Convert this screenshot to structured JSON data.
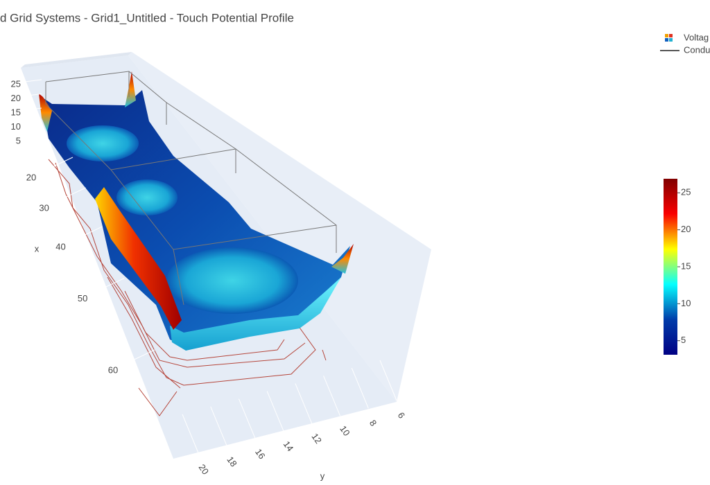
{
  "chart_data": {
    "type": "surface",
    "title": "d Grid Systems - Grid1_Untitled - Touch Potential Profile",
    "legend": [
      {
        "name": "Voltag",
        "kind": "surface"
      },
      {
        "name": "Condu",
        "kind": "line",
        "color": "#555555"
      }
    ],
    "xlabel": "x",
    "xticks": [
      20,
      30,
      40,
      50,
      60
    ],
    "ylabel": "y",
    "yticks": [
      6,
      8,
      10,
      12,
      14,
      16,
      18,
      20
    ],
    "zticks": [
      5,
      10,
      15,
      20,
      25
    ],
    "colorbar": {
      "range": [
        3.1,
        26.9
      ],
      "ticks": [
        5,
        10,
        15,
        20,
        25
      ],
      "colorscale": [
        "#000083",
        "#003caa",
        "#05ffff",
        "#ffff00",
        "#fa0000",
        "#800000"
      ]
    }
  }
}
